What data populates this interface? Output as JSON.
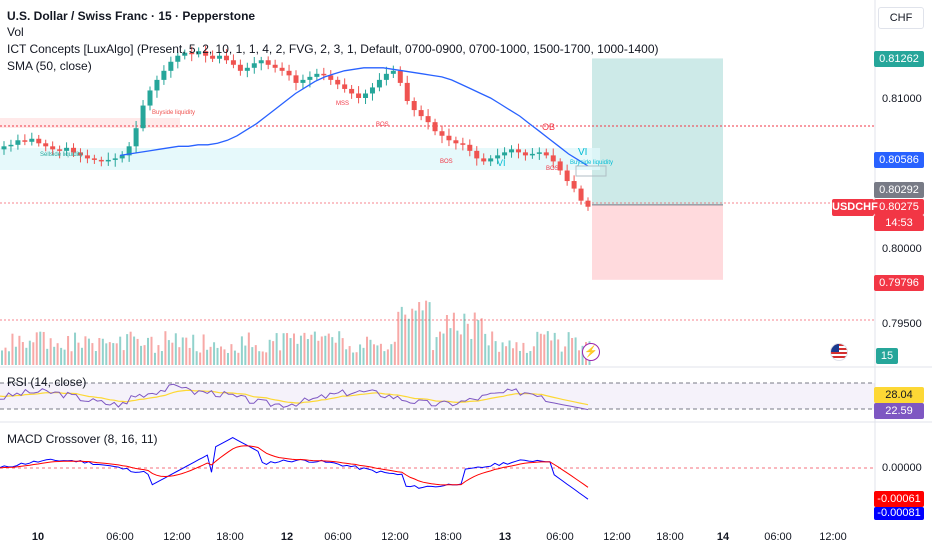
{
  "header": {
    "title": "U.S. Dollar / Swiss Franc · 15 · Pepperstone",
    "legend_vol": "Vol",
    "legend_ict": "ICT Concepts [LuxAlgo] (Present, 5, 2, 10, 1, 1, 4, 2, FVG, 2, 3, 1, Default, 0700-0900, 0700-1000, 1500-1700, 1000-1400)",
    "legend_sma": "SMA (50, close)",
    "currency": "CHF"
  },
  "panes": {
    "rsi_label": "RSI (14, close)",
    "macd_label": "MACD Crossover (8, 16, 11)"
  },
  "price_axis": {
    "ticks": [
      {
        "label": "0.81000",
        "value": 0.81
      },
      {
        "label": "0.80000",
        "value": 0.8
      },
      {
        "label": "0.79500",
        "value": 0.795
      }
    ],
    "badges": [
      {
        "label": "0.81262",
        "value": 0.81262,
        "color": "#26a69a"
      },
      {
        "label": "0.80586",
        "value": 0.80586,
        "color": "#2962ff"
      },
      {
        "label": "0.80292",
        "value": 0.80292,
        "color": "#787b86"
      },
      {
        "label": "0.79796",
        "value": 0.79796,
        "color": "#f23645"
      }
    ],
    "current": {
      "symbol": "USDCHF",
      "price": "0.80275",
      "countdown": "14:53",
      "value": 0.80275,
      "color": "#f23645"
    },
    "vol_badge": {
      "label": "15",
      "color": "#26a69a"
    },
    "rsi_badges": [
      {
        "label": "28.04",
        "value": 28.04,
        "color": "#fdd835",
        "text": "#131722"
      },
      {
        "label": "22.59",
        "value": 22.59,
        "color": "#7e57c2",
        "text": "#ffffff"
      }
    ],
    "macd_ticks": [
      {
        "label": "0.00000",
        "value": 0
      }
    ],
    "macd_badges": [
      {
        "label": "-0.00061",
        "value": -0.00061,
        "color": "#ff0000"
      },
      {
        "label": "-0.00081",
        "value": -0.00081,
        "color": "#0000ff"
      }
    ]
  },
  "time_axis": [
    {
      "label": "10",
      "bold": true
    },
    {
      "label": "06:00"
    },
    {
      "label": "12:00"
    },
    {
      "label": "18:00"
    },
    {
      "label": "12",
      "bold": true
    },
    {
      "label": "06:00"
    },
    {
      "label": "12:00"
    },
    {
      "label": "18:00"
    },
    {
      "label": "13",
      "bold": true
    },
    {
      "label": "06:00"
    },
    {
      "label": "12:00"
    },
    {
      "label": "18:00"
    },
    {
      "label": "14",
      "bold": true
    },
    {
      "label": "06:00"
    },
    {
      "label": "12:00"
    }
  ],
  "annotations": {
    "sellside": "Sellside liquidity",
    "buyside": "Buyside liquidity",
    "buyside2": "Buyside liquidity",
    "mss": "MSS",
    "bos1": "BOS",
    "bos2": "BOS",
    "bos3": "BOS",
    "ob": "OB",
    "vi1": "VI",
    "vi2": "VI"
  },
  "colors": {
    "up": "#26a69a",
    "down": "#ef5350",
    "sma": "#2962ff",
    "rsi": "#7e57c2",
    "rsi_ma": "#fdd835",
    "macd": "#0000ff",
    "signal": "#ff0000",
    "target_zone": "#b2dfdb",
    "stop_zone": "#ffcdd2"
  },
  "chart_data": {
    "type": "candlestick",
    "symbol": "USDCHF",
    "interval": "15",
    "price_range": [
      0.7935,
      0.815
    ],
    "closes": [
      0.8068,
      0.8069,
      0.8072,
      0.8071,
      0.8073,
      0.807,
      0.8068,
      0.8066,
      0.8065,
      0.8067,
      0.8064,
      0.8062,
      0.806,
      0.8059,
      0.8058,
      0.8059,
      0.806,
      0.8062,
      0.8068,
      0.808,
      0.8095,
      0.8105,
      0.8112,
      0.8118,
      0.8124,
      0.8128,
      0.813,
      0.8129,
      0.8131,
      0.8128,
      0.8126,
      0.8128,
      0.8125,
      0.8122,
      0.8118,
      0.812,
      0.8123,
      0.8125,
      0.8122,
      0.812,
      0.8118,
      0.8115,
      0.811,
      0.8112,
      0.8114,
      0.8116,
      0.8115,
      0.8112,
      0.8109,
      0.8106,
      0.8103,
      0.81,
      0.8103,
      0.8107,
      0.8112,
      0.8116,
      0.8118,
      0.811,
      0.8098,
      0.8092,
      0.8088,
      0.8084,
      0.8078,
      0.8075,
      0.8072,
      0.807,
      0.8069,
      0.8065,
      0.806,
      0.8058,
      0.806,
      0.8062,
      0.8064,
      0.8066,
      0.8064,
      0.8062,
      0.8063,
      0.8064,
      0.8062,
      0.8058,
      0.8052,
      0.8045,
      0.804,
      0.8032,
      0.8028
    ],
    "sma50": [
      0.8062,
      0.8063,
      0.8064,
      0.8065,
      0.8066,
      0.8067,
      0.8068,
      0.8068,
      0.8069,
      0.8069,
      0.807,
      0.8072,
      0.8075,
      0.8079,
      0.8083,
      0.8088,
      0.8093,
      0.8098,
      0.8103,
      0.8107,
      0.8111,
      0.8114,
      0.8116,
      0.8118,
      0.8119,
      0.812,
      0.812,
      0.812,
      0.8119,
      0.8118,
      0.8117,
      0.8116,
      0.8115,
      0.8114,
      0.8112,
      0.8109,
      0.8106,
      0.8103,
      0.81,
      0.8096,
      0.8092,
      0.8088,
      0.8083,
      0.8078,
      0.8073,
      0.8068,
      0.8063,
      0.8059,
      0.8055
    ],
    "trade": {
      "entry": 0.80292,
      "target": 0.81262,
      "stop": 0.79796
    },
    "liquidity_levels": [
      0.80586,
      0.80292
    ],
    "rsi": {
      "ylim": [
        0,
        100
      ],
      "last": 22.59,
      "ma_last": 28.04
    },
    "macd": {
      "last_macd": -0.00081,
      "last_signal": -0.00061
    }
  }
}
